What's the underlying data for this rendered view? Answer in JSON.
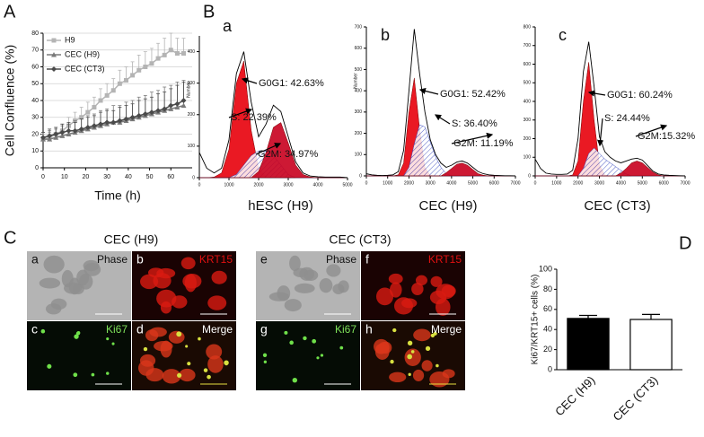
{
  "panel_labels": [
    "A",
    "B",
    "C",
    "D"
  ],
  "chart_data": [
    {
      "type": "line",
      "xlabel": "Time (h)",
      "ylabel": "Cell Confluence (%)",
      "x": [
        0,
        3,
        6,
        9,
        12,
        15,
        18,
        21,
        24,
        27,
        30,
        33,
        36,
        39,
        42,
        45,
        48,
        51,
        54,
        57,
        60,
        63,
        66
      ],
      "xlim": [
        0,
        70
      ],
      "xticks": [
        0,
        10,
        20,
        30,
        40,
        50,
        60
      ],
      "ylim": [
        0,
        80
      ],
      "yticks": [
        0,
        10,
        20,
        30,
        40,
        50,
        60,
        70,
        80
      ],
      "grid": true,
      "legend": "upper left",
      "series": [
        {
          "name": "H9",
          "color": "#b4b4b4",
          "marker": "square",
          "values": [
            17,
            18,
            20,
            22,
            25,
            28,
            30,
            33,
            36,
            40,
            43,
            46,
            50,
            52,
            55,
            58,
            60,
            62,
            65,
            67,
            70,
            68,
            68
          ],
          "errors": [
            3,
            3,
            4,
            4,
            5,
            5,
            6,
            6,
            6,
            7,
            7,
            7,
            8,
            8,
            8,
            9,
            9,
            9,
            9,
            10,
            10,
            9,
            9
          ]
        },
        {
          "name": "CEC (H9)",
          "color": "#7a7a7a",
          "marker": "triangle",
          "values": [
            17,
            17,
            18,
            19,
            20,
            21,
            22,
            23,
            24,
            25,
            26,
            27,
            27,
            28,
            29,
            30,
            31,
            32,
            33,
            34,
            35,
            36,
            37
          ],
          "errors": [
            4,
            5,
            5,
            6,
            6,
            7,
            7,
            8,
            8,
            9,
            9,
            10,
            10,
            11,
            11,
            12,
            12,
            13,
            13,
            14,
            14,
            15,
            15
          ]
        },
        {
          "name": "CEC (CT3)",
          "color": "#4a4a4a",
          "marker": "diamond",
          "values": [
            18,
            19,
            20,
            21,
            22,
            22,
            23,
            24,
            25,
            26,
            27,
            27,
            28,
            29,
            30,
            31,
            32,
            33,
            34,
            35,
            37,
            38,
            40
          ],
          "errors": [
            3,
            4,
            4,
            5,
            5,
            5,
            6,
            6,
            6,
            7,
            7,
            7,
            8,
            8,
            8,
            9,
            9,
            9,
            10,
            10,
            10,
            11,
            11
          ]
        }
      ]
    },
    {
      "type": "area",
      "letter": "a",
      "xlabel": "hESC (H9)",
      "ylabel": "Number",
      "x": [
        0,
        250,
        500,
        750,
        1000,
        1250,
        1500,
        1750,
        2000,
        2250,
        2500,
        2750,
        3000,
        3250,
        3500,
        3750,
        4000,
        4250,
        4500,
        4750,
        5000
      ],
      "xlim": [
        0,
        5000
      ],
      "xticks": [
        0,
        1000,
        2000,
        3000,
        4000,
        5000
      ],
      "ylim": [
        0,
        450
      ],
      "yticks": [
        0,
        100,
        200,
        300,
        400
      ],
      "annotations": [
        "G0G1: 42.63%",
        "S: 22.39%",
        "G2M: 34.97%"
      ],
      "series": [
        {
          "color": "#e8000b",
          "values": [
            0,
            0,
            2,
            15,
            90,
            300,
            370,
            150,
            30,
            3,
            0,
            0,
            0,
            0,
            0,
            0,
            0,
            0,
            0,
            0,
            0
          ]
        },
        {
          "color": "#3b4cc0",
          "hatch": true,
          "values": [
            0,
            0,
            0,
            0,
            0,
            10,
            40,
            70,
            85,
            85,
            70,
            40,
            10,
            0,
            0,
            0,
            0,
            0,
            0,
            0,
            0
          ]
        },
        {
          "color": "#c8001e",
          "values": [
            0,
            0,
            0,
            0,
            0,
            0,
            0,
            0,
            20,
            80,
            160,
            175,
            110,
            40,
            10,
            2,
            0,
            0,
            0,
            0,
            0
          ]
        },
        {
          "color": "#000000",
          "outline": true,
          "values": [
            80,
            30,
            15,
            30,
            120,
            330,
            400,
            240,
            130,
            170,
            230,
            210,
            130,
            50,
            15,
            5,
            3,
            2,
            2,
            2,
            0
          ]
        }
      ]
    },
    {
      "type": "area",
      "letter": "b",
      "xlabel": "CEC (H9)",
      "ylabel": "Number",
      "x": [
        0,
        250,
        500,
        750,
        1000,
        1250,
        1500,
        1750,
        2000,
        2250,
        2500,
        2750,
        3000,
        3250,
        3500,
        3750,
        4000,
        4250,
        4500,
        4750,
        5000,
        5250,
        5500,
        5750,
        6000,
        6250,
        6500,
        6750,
        7000
      ],
      "xlim": [
        0,
        7000
      ],
      "xticks": [
        0,
        1000,
        2000,
        3000,
        4000,
        5000,
        6000,
        7000
      ],
      "ylim": [
        0,
        700
      ],
      "yticks": [
        0,
        100,
        200,
        300,
        400,
        500,
        600,
        700
      ],
      "annotations": [
        "G0G1: 52.42%",
        "S: 36.40%",
        "G2M: 11.19%"
      ],
      "series": [
        {
          "color": "#e8000b",
          "values": [
            0,
            0,
            0,
            0,
            0,
            0,
            5,
            60,
            300,
            460,
            220,
            40,
            3,
            0,
            0,
            0,
            0,
            0,
            0,
            0,
            0,
            0,
            0,
            0,
            0,
            0,
            0,
            0,
            0
          ]
        },
        {
          "color": "#3b4cc0",
          "hatch": true,
          "values": [
            0,
            0,
            0,
            0,
            0,
            0,
            0,
            0,
            40,
            150,
            240,
            230,
            160,
            90,
            40,
            10,
            0,
            0,
            0,
            0,
            0,
            0,
            0,
            0,
            0,
            0,
            0,
            0,
            0
          ]
        },
        {
          "color": "#c8001e",
          "values": [
            0,
            0,
            0,
            0,
            0,
            0,
            0,
            0,
            0,
            0,
            0,
            0,
            0,
            0,
            0,
            15,
            35,
            55,
            60,
            50,
            30,
            10,
            3,
            0,
            0,
            0,
            0,
            0,
            0
          ]
        },
        {
          "color": "#000000",
          "outline": true,
          "values": [
            10,
            5,
            3,
            2,
            3,
            5,
            20,
            120,
            400,
            690,
            480,
            300,
            170,
            100,
            60,
            40,
            50,
            65,
            70,
            60,
            40,
            20,
            10,
            5,
            3,
            2,
            1,
            1,
            0
          ]
        }
      ]
    },
    {
      "type": "area",
      "letter": "c",
      "xlabel": "CEC (CT3)",
      "x": [
        0,
        250,
        500,
        750,
        1000,
        1250,
        1500,
        1750,
        2000,
        2250,
        2500,
        2750,
        3000,
        3250,
        3500,
        3750,
        4000,
        4250,
        4500,
        4750,
        5000,
        5250,
        5500,
        5750,
        6000,
        6250,
        6500,
        6750,
        7000
      ],
      "xlim": [
        0,
        7000
      ],
      "xticks": [
        0,
        1000,
        2000,
        3000,
        4000,
        5000,
        6000,
        7000
      ],
      "ylim": [
        0,
        800
      ],
      "yticks": [
        0,
        100,
        200,
        300,
        400,
        500,
        600,
        700,
        800
      ],
      "annotations": [
        "G0G1: 60.24%",
        "S: 24.44%",
        "G2M:15.32%"
      ],
      "series": [
        {
          "color": "#e8000b",
          "values": [
            0,
            0,
            0,
            0,
            0,
            0,
            0,
            5,
            80,
            400,
            610,
            300,
            60,
            5,
            0,
            0,
            0,
            0,
            0,
            0,
            0,
            0,
            0,
            0,
            0,
            0,
            0,
            0,
            0
          ]
        },
        {
          "color": "#3b4cc0",
          "hatch": true,
          "values": [
            0,
            0,
            0,
            0,
            0,
            0,
            0,
            0,
            0,
            40,
            120,
            150,
            120,
            90,
            70,
            50,
            30,
            10,
            0,
            0,
            0,
            0,
            0,
            0,
            0,
            0,
            0,
            0,
            0
          ]
        },
        {
          "color": "#c8001e",
          "values": [
            0,
            0,
            0,
            0,
            0,
            0,
            0,
            0,
            0,
            0,
            0,
            0,
            0,
            0,
            0,
            0,
            15,
            40,
            70,
            80,
            70,
            45,
            20,
            5,
            0,
            0,
            0,
            0,
            0
          ]
        },
        {
          "color": "#000000",
          "outline": true,
          "values": [
            90,
            40,
            15,
            10,
            8,
            8,
            10,
            30,
            200,
            560,
            720,
            480,
            210,
            130,
            100,
            80,
            70,
            80,
            90,
            95,
            85,
            55,
            25,
            10,
            5,
            3,
            2,
            1,
            0
          ]
        }
      ]
    },
    {
      "type": "bar",
      "ylabel": "Ki67/KRT15+ cells (%)",
      "categories": [
        "CEC (H9)",
        "CEC (CT3)"
      ],
      "values": [
        51,
        50
      ],
      "errors": [
        3,
        5
      ],
      "colors": [
        "#000000",
        "#ffffff"
      ],
      "ylim": [
        0,
        100
      ],
      "yticks": [
        0,
        20,
        40,
        60,
        80,
        100
      ]
    }
  ],
  "micrographs": {
    "groups": [
      {
        "title": "CEC (H9)",
        "tiles": [
          {
            "letter": "a",
            "label": "Phase"
          },
          {
            "letter": "b",
            "label": "KRT15"
          },
          {
            "letter": "c",
            "label": "Ki67"
          },
          {
            "letter": "d",
            "label": "Merge"
          }
        ]
      },
      {
        "title": "CEC (CT3)",
        "tiles": [
          {
            "letter": "e",
            "label": "Phase"
          },
          {
            "letter": "f",
            "label": "KRT15"
          },
          {
            "letter": "g",
            "label": "Ki67"
          },
          {
            "letter": "h",
            "label": "Merge"
          }
        ]
      }
    ]
  }
}
